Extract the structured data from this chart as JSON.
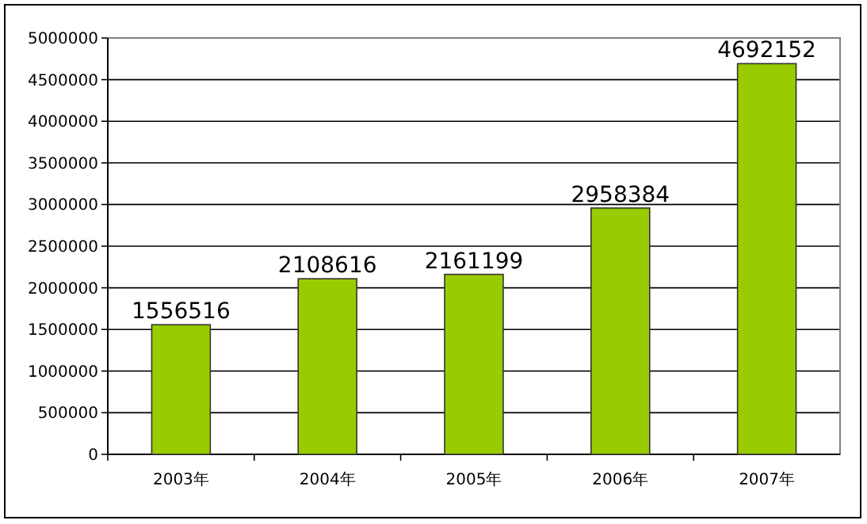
{
  "chart_data": {
    "type": "bar",
    "categories": [
      "2003年",
      "2004年",
      "2005年",
      "2006年",
      "2007年"
    ],
    "values": [
      1556516,
      2108616,
      2161199,
      2958384,
      4692152
    ],
    "color": "#99cc00",
    "ylim": [
      0,
      5000000
    ],
    "yticks": [
      0,
      500000,
      1000000,
      1500000,
      2000000,
      2500000,
      3000000,
      3500000,
      4000000,
      4500000,
      5000000
    ],
    "grid": "y",
    "data_labels": true
  }
}
